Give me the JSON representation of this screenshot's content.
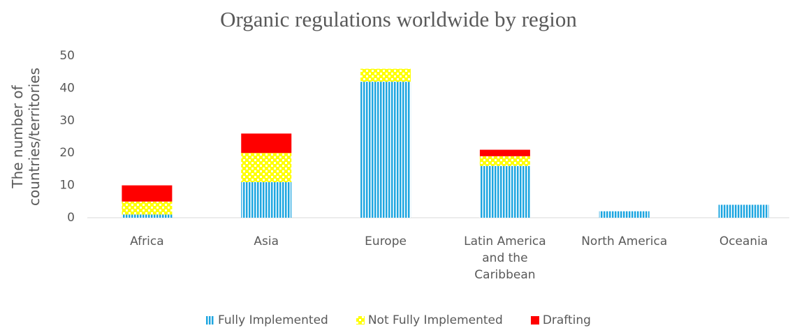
{
  "chart_data": {
    "type": "stacked_bar",
    "title": "Organic regulations worldwide by region",
    "y_label": "The number of countries/territories",
    "categories": [
      "Africa",
      "Asia",
      "Europe",
      "Latin America and the Caribbean",
      "North America",
      "Oceania"
    ],
    "series": [
      {
        "name": "Fully Implemented",
        "color": "#1ea6e0",
        "values": [
          1,
          11,
          42,
          16,
          2,
          4
        ]
      },
      {
        "name": "Not Fully Implemented",
        "color": "#ffff00",
        "values": [
          4,
          9,
          4,
          3,
          0,
          0
        ]
      },
      {
        "name": "Drafting",
        "color": "#ff0000",
        "values": [
          5,
          6,
          0,
          2,
          0,
          0
        ]
      }
    ],
    "ylim": [
      0,
      50
    ],
    "yticks": [
      0,
      10,
      20,
      30,
      40,
      50
    ],
    "grid": false
  }
}
